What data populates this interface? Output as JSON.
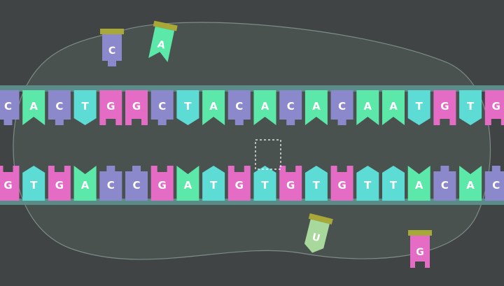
{
  "diagram": {
    "top_strand": [
      "C",
      "A",
      "C",
      "T",
      "G",
      "G",
      "C",
      "T",
      "A",
      "C",
      "A",
      "C",
      "A",
      "C",
      "A",
      "A",
      "T",
      "G",
      "T",
      "G"
    ],
    "bottom_strand": [
      "G",
      "T",
      "G",
      "A",
      "C",
      "C",
      "G",
      "A",
      "T",
      "G",
      "T",
      "G",
      "T",
      "G",
      "T",
      "T",
      "A",
      "C",
      "A",
      "C"
    ],
    "free_nucleotides": [
      {
        "letter": "C",
        "shape": "flat"
      },
      {
        "letter": "A",
        "shape": "chevron"
      },
      {
        "letter": "U",
        "shape": "chevron"
      },
      {
        "letter": "G",
        "shape": "flat"
      }
    ],
    "colors": {
      "background": "#404444",
      "cell": "#4a5250",
      "backbone": "#5c8c88",
      "A": "#5ce8a8",
      "C": "#8c88cc",
      "G": "#e46cc4",
      "T": "#5cdcd4",
      "U": "#a8d89c",
      "cap": "#a8a838",
      "label": "#ffffff"
    }
  }
}
